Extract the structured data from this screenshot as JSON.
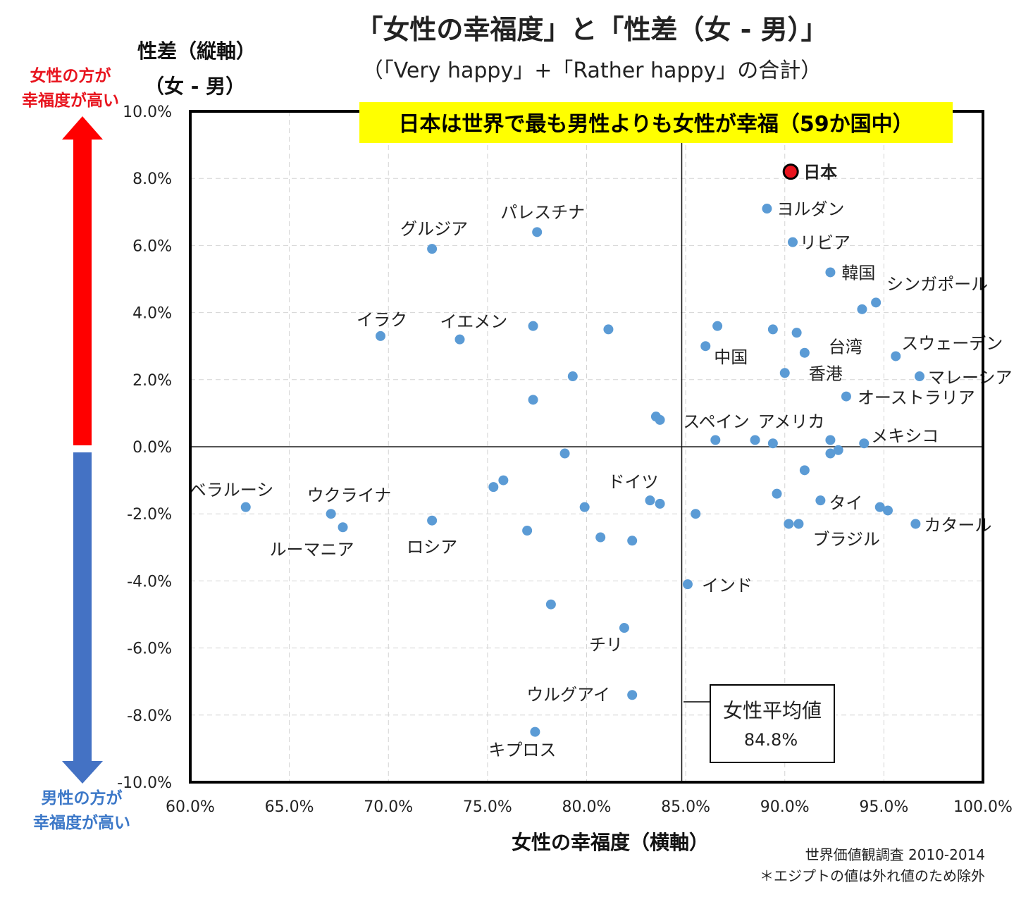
{
  "title": "「女性の幸福度」と「性差（女 - 男）」",
  "subtitle": "（「Very happy」+「Rather happy」の合計）",
  "banner": "日本は世界で最も男性よりも女性が幸福（59か国中）",
  "y_axis_title_1": "性差（縦軸）",
  "y_axis_title_2": "（女 - 男）",
  "x_axis_title": "女性の幸福度（横軸）",
  "side_top": [
    "女性の方が",
    "幸福度が高い"
  ],
  "side_bottom": [
    "男性の方が",
    "幸福度が高い"
  ],
  "avg_box": {
    "label": "女性平均値",
    "value": "84.8%"
  },
  "source": [
    "世界価値観調査 2010-2014",
    "＊エジプトの値は外れ値のため除外"
  ],
  "colors": {
    "point": "#5b9bd5",
    "japan": "#e8141e",
    "up_arrow": "#ff0000",
    "down_arrow": "#4472c4",
    "banner": "#ffff00"
  },
  "chart_data": {
    "type": "scatter",
    "xlim": [
      60,
      100
    ],
    "ylim": [
      -10,
      10
    ],
    "avg_x": 84.8,
    "xticks": [
      60,
      65,
      70,
      75,
      80,
      85,
      90,
      95,
      100
    ],
    "yticks": [
      10,
      8,
      6,
      4,
      2,
      0,
      -2,
      -4,
      -6,
      -8,
      -10
    ],
    "xtick_labels": [
      "60.0%",
      "65.0%",
      "70.0%",
      "75.0%",
      "80.0%",
      "85.0%",
      "90.0%",
      "95.0%",
      "100.0%"
    ],
    "ytick_labels": [
      "10.0%",
      "8.0%",
      "6.0%",
      "4.0%",
      "2.0%",
      "0.0%",
      "-2.0%",
      "-4.0%",
      "-6.0%",
      "-8.0%",
      "-10.0%"
    ],
    "grid": true,
    "points": [
      {
        "name": "日本",
        "x": 90.3,
        "y": 8.2,
        "highlight": true
      },
      {
        "name": "ヨルダン",
        "x": 89.1,
        "y": 7.1
      },
      {
        "name": "リビア",
        "x": 90.4,
        "y": 6.1
      },
      {
        "name": "韓国",
        "x": 92.3,
        "y": 5.2
      },
      {
        "name": "シンガポール",
        "x": 94.6,
        "y": 4.3
      },
      {
        "name": "",
        "x": 93.9,
        "y": 4.1
      },
      {
        "name": "パレスチナ",
        "x": 77.5,
        "y": 6.4
      },
      {
        "name": "グルジア",
        "x": 72.2,
        "y": 5.9
      },
      {
        "name": "イラク",
        "x": 69.6,
        "y": 3.3
      },
      {
        "name": "イエメン",
        "x": 73.6,
        "y": 3.2
      },
      {
        "name": "",
        "x": 77.3,
        "y": 3.6
      },
      {
        "name": "",
        "x": 81.1,
        "y": 3.5
      },
      {
        "name": "",
        "x": 79.3,
        "y": 2.1
      },
      {
        "name": "",
        "x": 77.3,
        "y": 1.4
      },
      {
        "name": "",
        "x": 86.6,
        "y": 3.6
      },
      {
        "name": "中国",
        "x": 86.0,
        "y": 3.0
      },
      {
        "name": "",
        "x": 89.4,
        "y": 3.5
      },
      {
        "name": "",
        "x": 90.6,
        "y": 3.4
      },
      {
        "name": "台湾",
        "x": 91.0,
        "y": 2.8
      },
      {
        "name": "香港",
        "x": 90.0,
        "y": 2.2
      },
      {
        "name": "スウェーデン",
        "x": 95.6,
        "y": 2.7
      },
      {
        "name": "マレーシア",
        "x": 96.8,
        "y": 2.1
      },
      {
        "name": "オーストラリア",
        "x": 93.1,
        "y": 1.5
      },
      {
        "name": "",
        "x": 83.5,
        "y": 0.9
      },
      {
        "name": "",
        "x": 83.7,
        "y": 0.8
      },
      {
        "name": "スペイン",
        "x": 86.5,
        "y": 0.2
      },
      {
        "name": "アメリカ",
        "x": 88.5,
        "y": 0.2
      },
      {
        "name": "",
        "x": 89.4,
        "y": 0.1
      },
      {
        "name": "",
        "x": 92.3,
        "y": 0.2
      },
      {
        "name": "メキシコ",
        "x": 94.0,
        "y": 0.1
      },
      {
        "name": "",
        "x": 92.3,
        "y": -0.2
      },
      {
        "name": "",
        "x": 92.7,
        "y": -0.1
      },
      {
        "name": "",
        "x": 78.9,
        "y": -0.2
      },
      {
        "name": "",
        "x": 91.0,
        "y": -0.7
      },
      {
        "name": "",
        "x": 75.8,
        "y": -1.0
      },
      {
        "name": "",
        "x": 75.3,
        "y": -1.2
      },
      {
        "name": "",
        "x": 89.6,
        "y": -1.4
      },
      {
        "name": "ベラルーシ",
        "x": 62.8,
        "y": -1.8
      },
      {
        "name": "ウクライナ",
        "x": 67.1,
        "y": -2.0
      },
      {
        "name": "ルーマニア",
        "x": 67.7,
        "y": -2.4
      },
      {
        "name": "ロシア",
        "x": 72.2,
        "y": -2.2
      },
      {
        "name": "",
        "x": 77.0,
        "y": -2.5
      },
      {
        "name": "",
        "x": 79.9,
        "y": -1.8
      },
      {
        "name": "",
        "x": 80.7,
        "y": -2.7
      },
      {
        "name": "",
        "x": 82.3,
        "y": -2.8
      },
      {
        "name": "ドイツ",
        "x": 83.2,
        "y": -1.6
      },
      {
        "name": "",
        "x": 83.7,
        "y": -1.7
      },
      {
        "name": "",
        "x": 85.5,
        "y": -2.0
      },
      {
        "name": "タイ",
        "x": 91.8,
        "y": -1.6
      },
      {
        "name": "",
        "x": 94.8,
        "y": -1.8
      },
      {
        "name": "",
        "x": 95.2,
        "y": -1.9
      },
      {
        "name": "カタール",
        "x": 96.6,
        "y": -2.3
      },
      {
        "name": "",
        "x": 90.2,
        "y": -2.3
      },
      {
        "name": "ブラジル",
        "x": 90.7,
        "y": -2.3
      },
      {
        "name": "インド",
        "x": 85.1,
        "y": -4.1
      },
      {
        "name": "",
        "x": 78.2,
        "y": -4.7
      },
      {
        "name": "チリ",
        "x": 81.9,
        "y": -5.4
      },
      {
        "name": "ウルグアイ",
        "x": 82.3,
        "y": -7.4
      },
      {
        "name": "キプロス",
        "x": 77.4,
        "y": -8.5
      }
    ]
  }
}
